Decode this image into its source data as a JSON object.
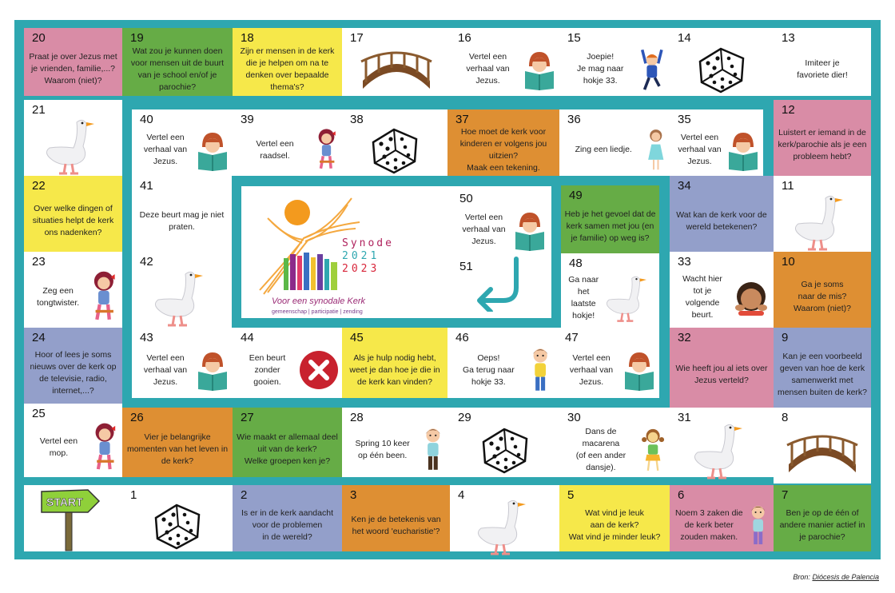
{
  "colors": {
    "teal": "#2ea7b0",
    "pink": "#d98ca6",
    "green": "#66ac46",
    "yellow": "#f6e84a",
    "orange": "#de8f33",
    "blue": "#939fca",
    "white": "#ffffff"
  },
  "cells": [
    {
      "num": "20",
      "text": "Praat je over Jezus met je vrienden, familie,...?\nWaarom (niet)?",
      "color": "pink",
      "icon": ""
    },
    {
      "num": "19",
      "text": "Wat zou je kunnen doen voor mensen uit de buurt van je school en/of je parochie?",
      "color": "green",
      "icon": ""
    },
    {
      "num": "18",
      "text": "Zijn er mensen in de kerk die je helpen om na te denken over bepaalde thema's?",
      "color": "yellow",
      "icon": ""
    },
    {
      "num": "17",
      "text": "",
      "color": "white",
      "icon": "bridge"
    },
    {
      "num": "16",
      "text": "Vertel een\nverhaal van\nJezus.",
      "color": "white",
      "icon": "reader"
    },
    {
      "num": "15",
      "text": "Joepie!\nJe mag naar\nhokje 33.",
      "color": "white",
      "icon": "jumping-boy"
    },
    {
      "num": "14",
      "text": "",
      "color": "white",
      "icon": "dice"
    },
    {
      "num": "13",
      "text": "Imiteer je\nfavoriete dier!",
      "color": "white",
      "icon": ""
    },
    {
      "num": "12",
      "text": "Luistert er iemand in de kerk/parochie als je een probleem hebt?",
      "color": "pink",
      "icon": ""
    },
    {
      "num": "11",
      "text": "",
      "color": "white",
      "icon": "goose"
    },
    {
      "num": "10",
      "text": "Ga je soms\nnaar de mis?\nWaarom (niet)?",
      "color": "orange",
      "icon": ""
    },
    {
      "num": "9",
      "text": "Kan je een voorbeeld geven van hoe de kerk samenwerkt met mensen buiten de kerk?",
      "color": "blue",
      "icon": ""
    },
    {
      "num": "8",
      "text": "",
      "color": "white",
      "icon": "bridge"
    },
    {
      "num": "7",
      "text": "Ben je op de één of andere manier actief in je parochie?",
      "color": "green",
      "icon": ""
    },
    {
      "num": "6",
      "text": "Noem 3 zaken die de kerk beter zouden maken.",
      "color": "pink",
      "icon": "boy"
    },
    {
      "num": "5",
      "text": "Wat vind je leuk\naan de kerk?\nWat vind je minder leuk?",
      "color": "yellow",
      "icon": ""
    },
    {
      "num": "4",
      "text": "",
      "color": "white",
      "icon": "goose"
    },
    {
      "num": "3",
      "text": "Ken je de betekenis van het woord 'eucharistie'?",
      "color": "orange",
      "icon": ""
    },
    {
      "num": "2",
      "text": "Is er in de kerk aandacht voor de problemen\nin de wereld?",
      "color": "blue",
      "icon": ""
    },
    {
      "num": "1",
      "text": "",
      "color": "white",
      "icon": "dice"
    },
    {
      "num": "21",
      "text": "",
      "color": "white",
      "icon": "goose"
    },
    {
      "num": "22",
      "text": "Over welke dingen of situaties helpt de kerk ons nadenken?",
      "color": "yellow",
      "icon": ""
    },
    {
      "num": "23",
      "text": "Zeg een\ntongtwister.",
      "color": "white",
      "icon": "sitting-girl"
    },
    {
      "num": "24",
      "text": "Hoor of lees je soms nieuws over de kerk op de televisie, radio, internet,...?",
      "color": "blue",
      "icon": ""
    },
    {
      "num": "25",
      "text": "Vertel een\nmop.",
      "color": "white",
      "icon": "sitting-girl"
    },
    {
      "num": "26",
      "text": "Vier je belangrijke momenten van het leven in de kerk?",
      "color": "orange",
      "icon": ""
    },
    {
      "num": "27",
      "text": "Wie maakt er allemaal deel uit van de kerk?\nWelke groepen ken je?",
      "color": "green",
      "icon": ""
    },
    {
      "num": "28",
      "text": "Spring 10 keer\nop één been.",
      "color": "white",
      "icon": "hopping-boy"
    },
    {
      "num": "29",
      "text": "",
      "color": "white",
      "icon": "dice"
    },
    {
      "num": "30",
      "text": "Dans de\nmacarena\n(of een ander\ndansje).",
      "color": "white",
      "icon": "dancing-girl"
    },
    {
      "num": "31",
      "text": "",
      "color": "white",
      "icon": "goose"
    },
    {
      "num": "32",
      "text": "Wie heeft jou al iets over Jezus verteld?",
      "color": "pink",
      "icon": ""
    },
    {
      "num": "33",
      "text": "Wacht hier\ntot je\nvolgende\nbeurt.",
      "color": "white",
      "icon": "waiting-boy"
    },
    {
      "num": "34",
      "text": "Wat kan de kerk voor de wereld betekenen?",
      "color": "blue",
      "icon": ""
    },
    {
      "num": "35",
      "text": "Vertel een\nverhaal van\nJezus.",
      "color": "white",
      "icon": "reader"
    },
    {
      "num": "36",
      "text": "Zing een liedje.",
      "color": "white",
      "icon": "singing-girl"
    },
    {
      "num": "37",
      "text": "Hoe moet de kerk voor kinderen er volgens jou uitzien?\nMaak een tekening.",
      "color": "orange",
      "icon": ""
    },
    {
      "num": "38",
      "text": "",
      "color": "white",
      "icon": "dice"
    },
    {
      "num": "39",
      "text": "Vertel een\nraadsel.",
      "color": "white",
      "icon": "sitting-girl"
    },
    {
      "num": "40",
      "text": "Vertel een\nverhaal van\nJezus.",
      "color": "white",
      "icon": "reader"
    },
    {
      "num": "41",
      "text": "Deze beurt mag je niet praten.",
      "color": "white",
      "icon": ""
    },
    {
      "num": "42",
      "text": "",
      "color": "white",
      "icon": "goose"
    },
    {
      "num": "43",
      "text": "Vertel een\nverhaal van\nJezus.",
      "color": "white",
      "icon": "reader"
    },
    {
      "num": "44",
      "text": "Een beurt\nzonder\ngooien.",
      "color": "white",
      "icon": "x-mark"
    },
    {
      "num": "45",
      "text": "Als je hulp nodig hebt, weet je dan hoe je die in de kerk kan vinden?",
      "color": "yellow",
      "icon": ""
    },
    {
      "num": "46",
      "text": "Oeps!\nGa terug naar\nhokje 33.",
      "color": "white",
      "icon": "thinking-boy"
    },
    {
      "num": "47",
      "text": "Vertel een\nverhaal van\nJezus.",
      "color": "white",
      "icon": "reader"
    },
    {
      "num": "48",
      "text": "Ga naar\nhet laatste\nhokje!",
      "color": "white",
      "icon": "goose"
    },
    {
      "num": "49",
      "text": "Heb je het gevoel dat de kerk samen met jou (en je familie) op weg is?",
      "color": "green",
      "icon": ""
    },
    {
      "num": "50",
      "text": "Vertel een\nverhaal van\nJezus.",
      "color": "white",
      "icon": "reader"
    },
    {
      "num": "51",
      "text": "",
      "color": "white",
      "icon": "return-arrow"
    }
  ],
  "start": {
    "label": "START",
    "icon": "start-signpost"
  },
  "logo": {
    "title": "Synode",
    "year1": "2021",
    "year2": "2023",
    "tagline": "Voor een synodale Kerk",
    "subtitle": "gemeenschap | participatie | zending"
  },
  "credit": {
    "prefix": "Bron:",
    "source": "Diócesis de Palencia"
  }
}
